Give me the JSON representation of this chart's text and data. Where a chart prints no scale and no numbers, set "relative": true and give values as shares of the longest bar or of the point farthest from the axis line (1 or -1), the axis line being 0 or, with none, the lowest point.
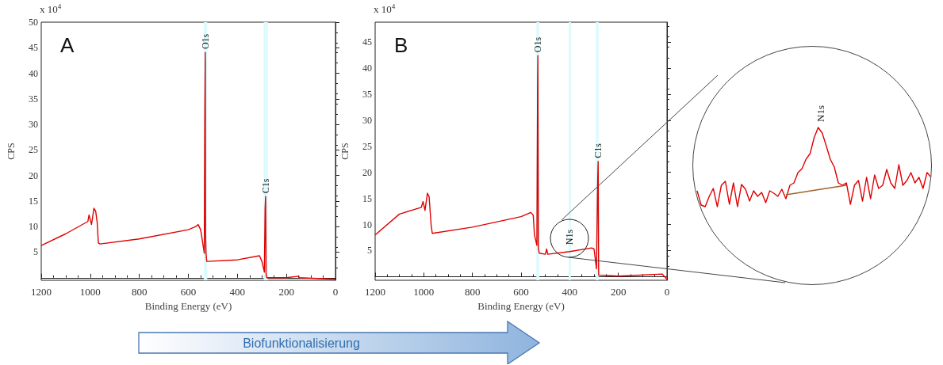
{
  "chart_data": [
    {
      "type": "line",
      "xlabel": "Binding Energy (eV)",
      "ylabel": "CPS",
      "xlim": [
        1200,
        0
      ],
      "xticks": [
        1200,
        1000,
        800,
        600,
        400,
        200,
        0
      ],
      "ylim": [
        -0.5,
        50
      ],
      "yticks": [
        5,
        10,
        15,
        20,
        25,
        30,
        35,
        40,
        45,
        50
      ],
      "series": [
        {
          "color": "#e00000",
          "x": [
            1200,
            1100,
            1010,
            1005,
            995,
            985,
            978,
            972,
            967,
            960,
            800,
            600,
            570,
            560,
            550,
            545,
            535,
            533,
            531,
            530,
            528,
            525,
            520,
            400,
            310,
            300,
            290,
            287,
            285,
            283,
            280,
            200,
            150,
            148,
            0
          ],
          "values": [
            6.3,
            8.6,
            11.0,
            12.3,
            10.4,
            13.6,
            13.0,
            10.9,
            6.8,
            6.6,
            7.6,
            9.4,
            10.0,
            10.4,
            9.4,
            7.9,
            4.8,
            30.6,
            44.1,
            8.9,
            4.8,
            3.2,
            3.2,
            3.5,
            4.3,
            3.2,
            1.1,
            13.6,
            15.9,
            0.6,
            0,
            0,
            0.3,
            0,
            -0.3
          ]
        }
      ],
      "bands": [
        {
          "axis": "x",
          "from": 523,
          "to": 537,
          "color": "#ddfafc"
        },
        {
          "axis": "x",
          "from": 293,
          "to": 276,
          "color": "#ddfafc"
        }
      ],
      "annotations": [
        "A",
        "x 10$^{4}$",
        {
          "text": "O1s",
          "x": 531,
          "y": 44.1
        },
        {
          "text": "C1s",
          "x": 285,
          "y": 15.9
        }
      ]
    },
    {
      "type": "line",
      "xlabel": "Binding Energy (eV)",
      "ylabel": "CPS",
      "xlim": [
        1200,
        0
      ],
      "xticks": [
        1200,
        1000,
        800,
        600,
        400,
        200,
        0
      ],
      "ylim": [
        -0.7,
        48.8
      ],
      "yticks": [
        5,
        10,
        15,
        20,
        25,
        30,
        35,
        40,
        45
      ],
      "series": [
        {
          "color": "#e00000",
          "x": [
            1200,
            1100,
            1010,
            1003,
            995,
            985,
            978,
            970,
            965,
            800,
            600,
            560,
            550,
            545,
            535,
            532,
            531,
            529,
            525,
            500,
            495,
            490,
            400,
            310,
            300,
            290,
            285,
            283,
            281,
            200,
            20,
            0
          ],
          "values": [
            8.0,
            12.0,
            13.3,
            14.4,
            12.7,
            16.0,
            15.3,
            10.0,
            8.3,
            9.5,
            11.5,
            12.3,
            11.8,
            8.0,
            6.0,
            37.6,
            42.4,
            5.5,
            4.5,
            4.3,
            5.3,
            4.3,
            4.8,
            5.5,
            5.3,
            1.5,
            18.5,
            22.1,
            0.3,
            0.1,
            0.5,
            -0.5
          ]
        }
      ],
      "bands": [
        {
          "axis": "x",
          "from": 525,
          "to": 537,
          "color": "#ddfafc"
        },
        {
          "axis": "x",
          "from": 404,
          "to": 395,
          "color": "#ddfafc"
        },
        {
          "axis": "x",
          "from": 293,
          "to": 281,
          "color": "#ddfafc"
        }
      ],
      "annotations": [
        "B",
        "x 10$^{4}$",
        {
          "text": "O1s",
          "x": 531,
          "y": 42.4
        },
        {
          "text": "N1s",
          "x": 400,
          "y": 5.5
        },
        {
          "text": "C1s",
          "x": 283,
          "y": 22.1
        }
      ]
    },
    {
      "type": "line",
      "relative": true,
      "categories": [
        null,
        null,
        null,
        null,
        null,
        null,
        null,
        null,
        null,
        null,
        null,
        null,
        null,
        null,
        null,
        null,
        null,
        null,
        null,
        null,
        null,
        null,
        null,
        null,
        null,
        null,
        null,
        null,
        null,
        null,
        null,
        null,
        null,
        null,
        null,
        null,
        null,
        null,
        null,
        null,
        null,
        null,
        null,
        null,
        null,
        null,
        null,
        null,
        null,
        null,
        null,
        null,
        null,
        null,
        null,
        null,
        null,
        null,
        null
      ],
      "series": [
        {
          "color": "#e00000",
          "values": [
            0.2,
            0.02,
            0,
            0.13,
            0.23,
            0,
            0.27,
            0.32,
            0.03,
            0.3,
            0,
            0.28,
            0.22,
            0.07,
            0.2,
            0.13,
            0.18,
            0.05,
            0.2,
            0.17,
            0.13,
            0.22,
            0.1,
            0.27,
            0.3,
            0.43,
            0.48,
            0.6,
            0.67,
            0.87,
            1,
            0.93,
            0.77,
            0.6,
            0.5,
            0.3,
            0.27,
            0.3,
            0.03,
            0.27,
            0.33,
            0.07,
            0.37,
            0.1,
            0.4,
            0.23,
            0.27,
            0.47,
            0.3,
            0.23,
            0.53,
            0.27,
            0.33,
            0.43,
            0.3,
            0.37,
            0.23,
            0.43,
            0.37
          ]
        },
        {
          "color": "#a0602a",
          "values": [
            null,
            null,
            null,
            null,
            null,
            null,
            null,
            null,
            null,
            null,
            null,
            null,
            null,
            null,
            null,
            null,
            null,
            null,
            null,
            null,
            null,
            null,
            0.15,
            null,
            null,
            null,
            null,
            null,
            null,
            null,
            null,
            null,
            null,
            null,
            null,
            null,
            null,
            0.27,
            null,
            null,
            null,
            null,
            null,
            null,
            null,
            null,
            null,
            null,
            null,
            null,
            null,
            null,
            null,
            null,
            null,
            null,
            null,
            null,
            null
          ]
        }
      ],
      "annotations": [
        "N1s"
      ]
    },
    {
      "type": "other",
      "annotations": [
        "Biofunktionalisierung"
      ]
    }
  ]
}
